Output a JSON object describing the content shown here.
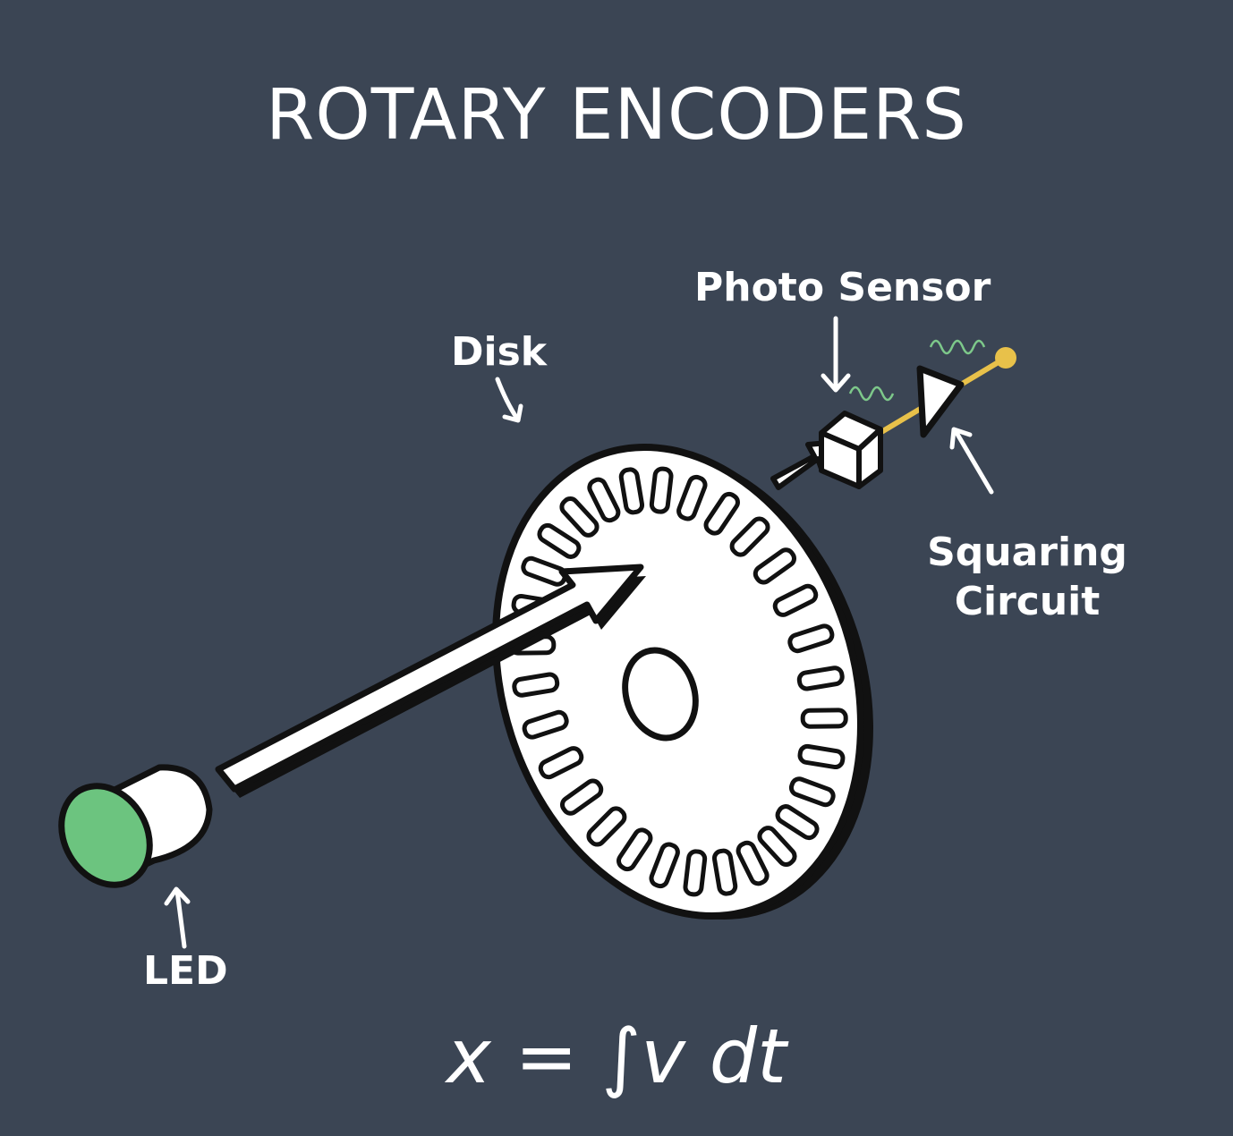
{
  "title": "ROTARY ENCODERS",
  "labels": {
    "photo_sensor": "Photo Sensor",
    "disk": "Disk",
    "squaring_circuit_line1": "Squaring",
    "squaring_circuit_line2": "Circuit",
    "led": "LED"
  },
  "formula": "x = ∫v dt",
  "colors": {
    "background": "#3b4554",
    "led_green": "#6cc47f",
    "signal_wire": "#e8c14a",
    "signal_wave": "#7dc88a",
    "outline": "#111111",
    "fill": "#ffffff"
  },
  "icons": [
    "led-icon",
    "encoder-disk-icon",
    "photo-sensor-icon",
    "squaring-circuit-icon",
    "light-beam-arrow-icon"
  ]
}
